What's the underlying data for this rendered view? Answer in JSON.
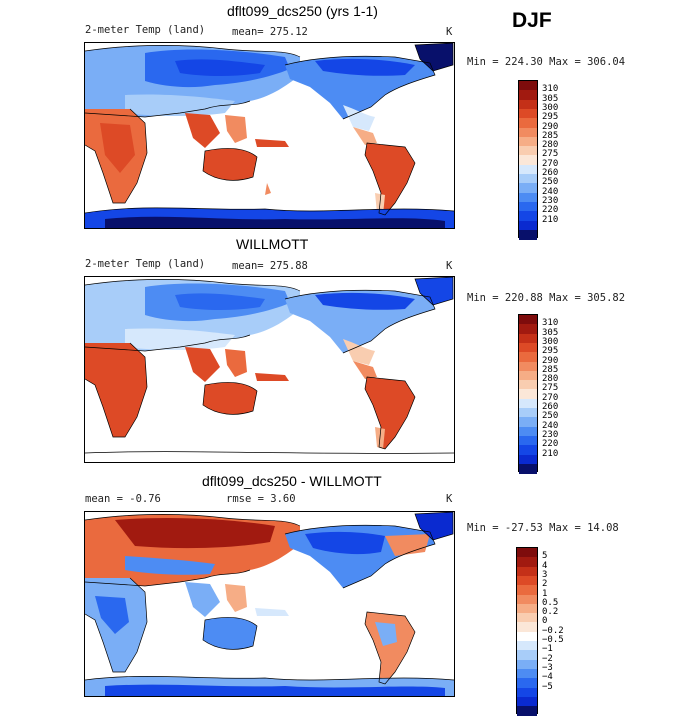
{
  "season": "DJF",
  "colors": {
    "temp_scale": [
      "#08106b",
      "#0a2ad0",
      "#1446e6",
      "#2a68ef",
      "#4d8cf3",
      "#7aaef6",
      "#a8cdf9",
      "#d6e8fc",
      "#fbe7d8",
      "#f9cdb0",
      "#f6ad86",
      "#f18b60",
      "#ea6a3e",
      "#dd4a26",
      "#c43018",
      "#a11a10",
      "#7e0c0c"
    ],
    "diff_scale": [
      "#08106b",
      "#0a2ad0",
      "#1446e6",
      "#2a68ef",
      "#4d8cf3",
      "#7aaef6",
      "#a8cdf9",
      "#d6e8fc",
      "#ffffff",
      "#fbe7d8",
      "#f9cdb0",
      "#f6ad86",
      "#f18b60",
      "#ea6a3e",
      "#dd4a26",
      "#c43018",
      "#a11a10",
      "#7e0c0c"
    ]
  },
  "panels": [
    {
      "title": "dflt099_dcs250 (yrs 1-1)",
      "left_text": "2-meter Temp (land)",
      "stat_text": "mean= 275.12",
      "unit": "K",
      "range_text": "Min = 224.30 Max = 306.04",
      "legend_labels": [
        "310",
        "305",
        "300",
        "295",
        "290",
        "285",
        "280",
        "275",
        "270",
        "260",
        "250",
        "240",
        "230",
        "220",
        "210"
      ],
      "chart_data": {
        "type": "heatmap",
        "title": "dflt099_dcs250 (yrs 1-1)",
        "variable": "2-meter Temp (land)",
        "season": "DJF",
        "mean": 275.12,
        "min": 224.3,
        "max": 306.04,
        "units": "K",
        "contour_levels": [
          210,
          220,
          230,
          240,
          250,
          260,
          270,
          275,
          280,
          285,
          290,
          295,
          300,
          305,
          310
        ]
      }
    },
    {
      "title": "WILLMOTT",
      "left_text": "2-meter Temp (land)",
      "stat_text": "mean= 275.88",
      "unit": "K",
      "range_text": "Min = 220.88 Max = 305.82",
      "legend_labels": [
        "310",
        "305",
        "300",
        "295",
        "290",
        "285",
        "280",
        "275",
        "270",
        "260",
        "250",
        "240",
        "230",
        "220",
        "210"
      ],
      "chart_data": {
        "type": "heatmap",
        "title": "WILLMOTT",
        "variable": "2-meter Temp (land)",
        "season": "DJF",
        "mean": 275.88,
        "min": 220.88,
        "max": 305.82,
        "units": "K",
        "contour_levels": [
          210,
          220,
          230,
          240,
          250,
          260,
          270,
          275,
          280,
          285,
          290,
          295,
          300,
          305,
          310
        ]
      }
    },
    {
      "title": "dflt099_dcs250 - WILLMOTT",
      "left_text": "mean =  -0.76",
      "stat_text": "rmse =   3.60",
      "unit": "K",
      "range_text": "Min = -27.53 Max =  14.08",
      "legend_labels": [
        "5",
        "4",
        "3",
        "2",
        "1",
        "0.5",
        "0.2",
        "0",
        "−0.2",
        "−0.5",
        "−1",
        "−2",
        "−3",
        "−4",
        "−5"
      ],
      "chart_data": {
        "type": "heatmap",
        "title": "dflt099_dcs250 - WILLMOTT",
        "season": "DJF",
        "mean": -0.76,
        "rmse": 3.6,
        "min": -27.53,
        "max": 14.08,
        "units": "K",
        "contour_levels": [
          -5,
          -4,
          -3,
          -2,
          -1,
          -0.5,
          -0.2,
          0,
          0.2,
          0.5,
          1,
          2,
          3,
          4,
          5
        ]
      }
    }
  ]
}
